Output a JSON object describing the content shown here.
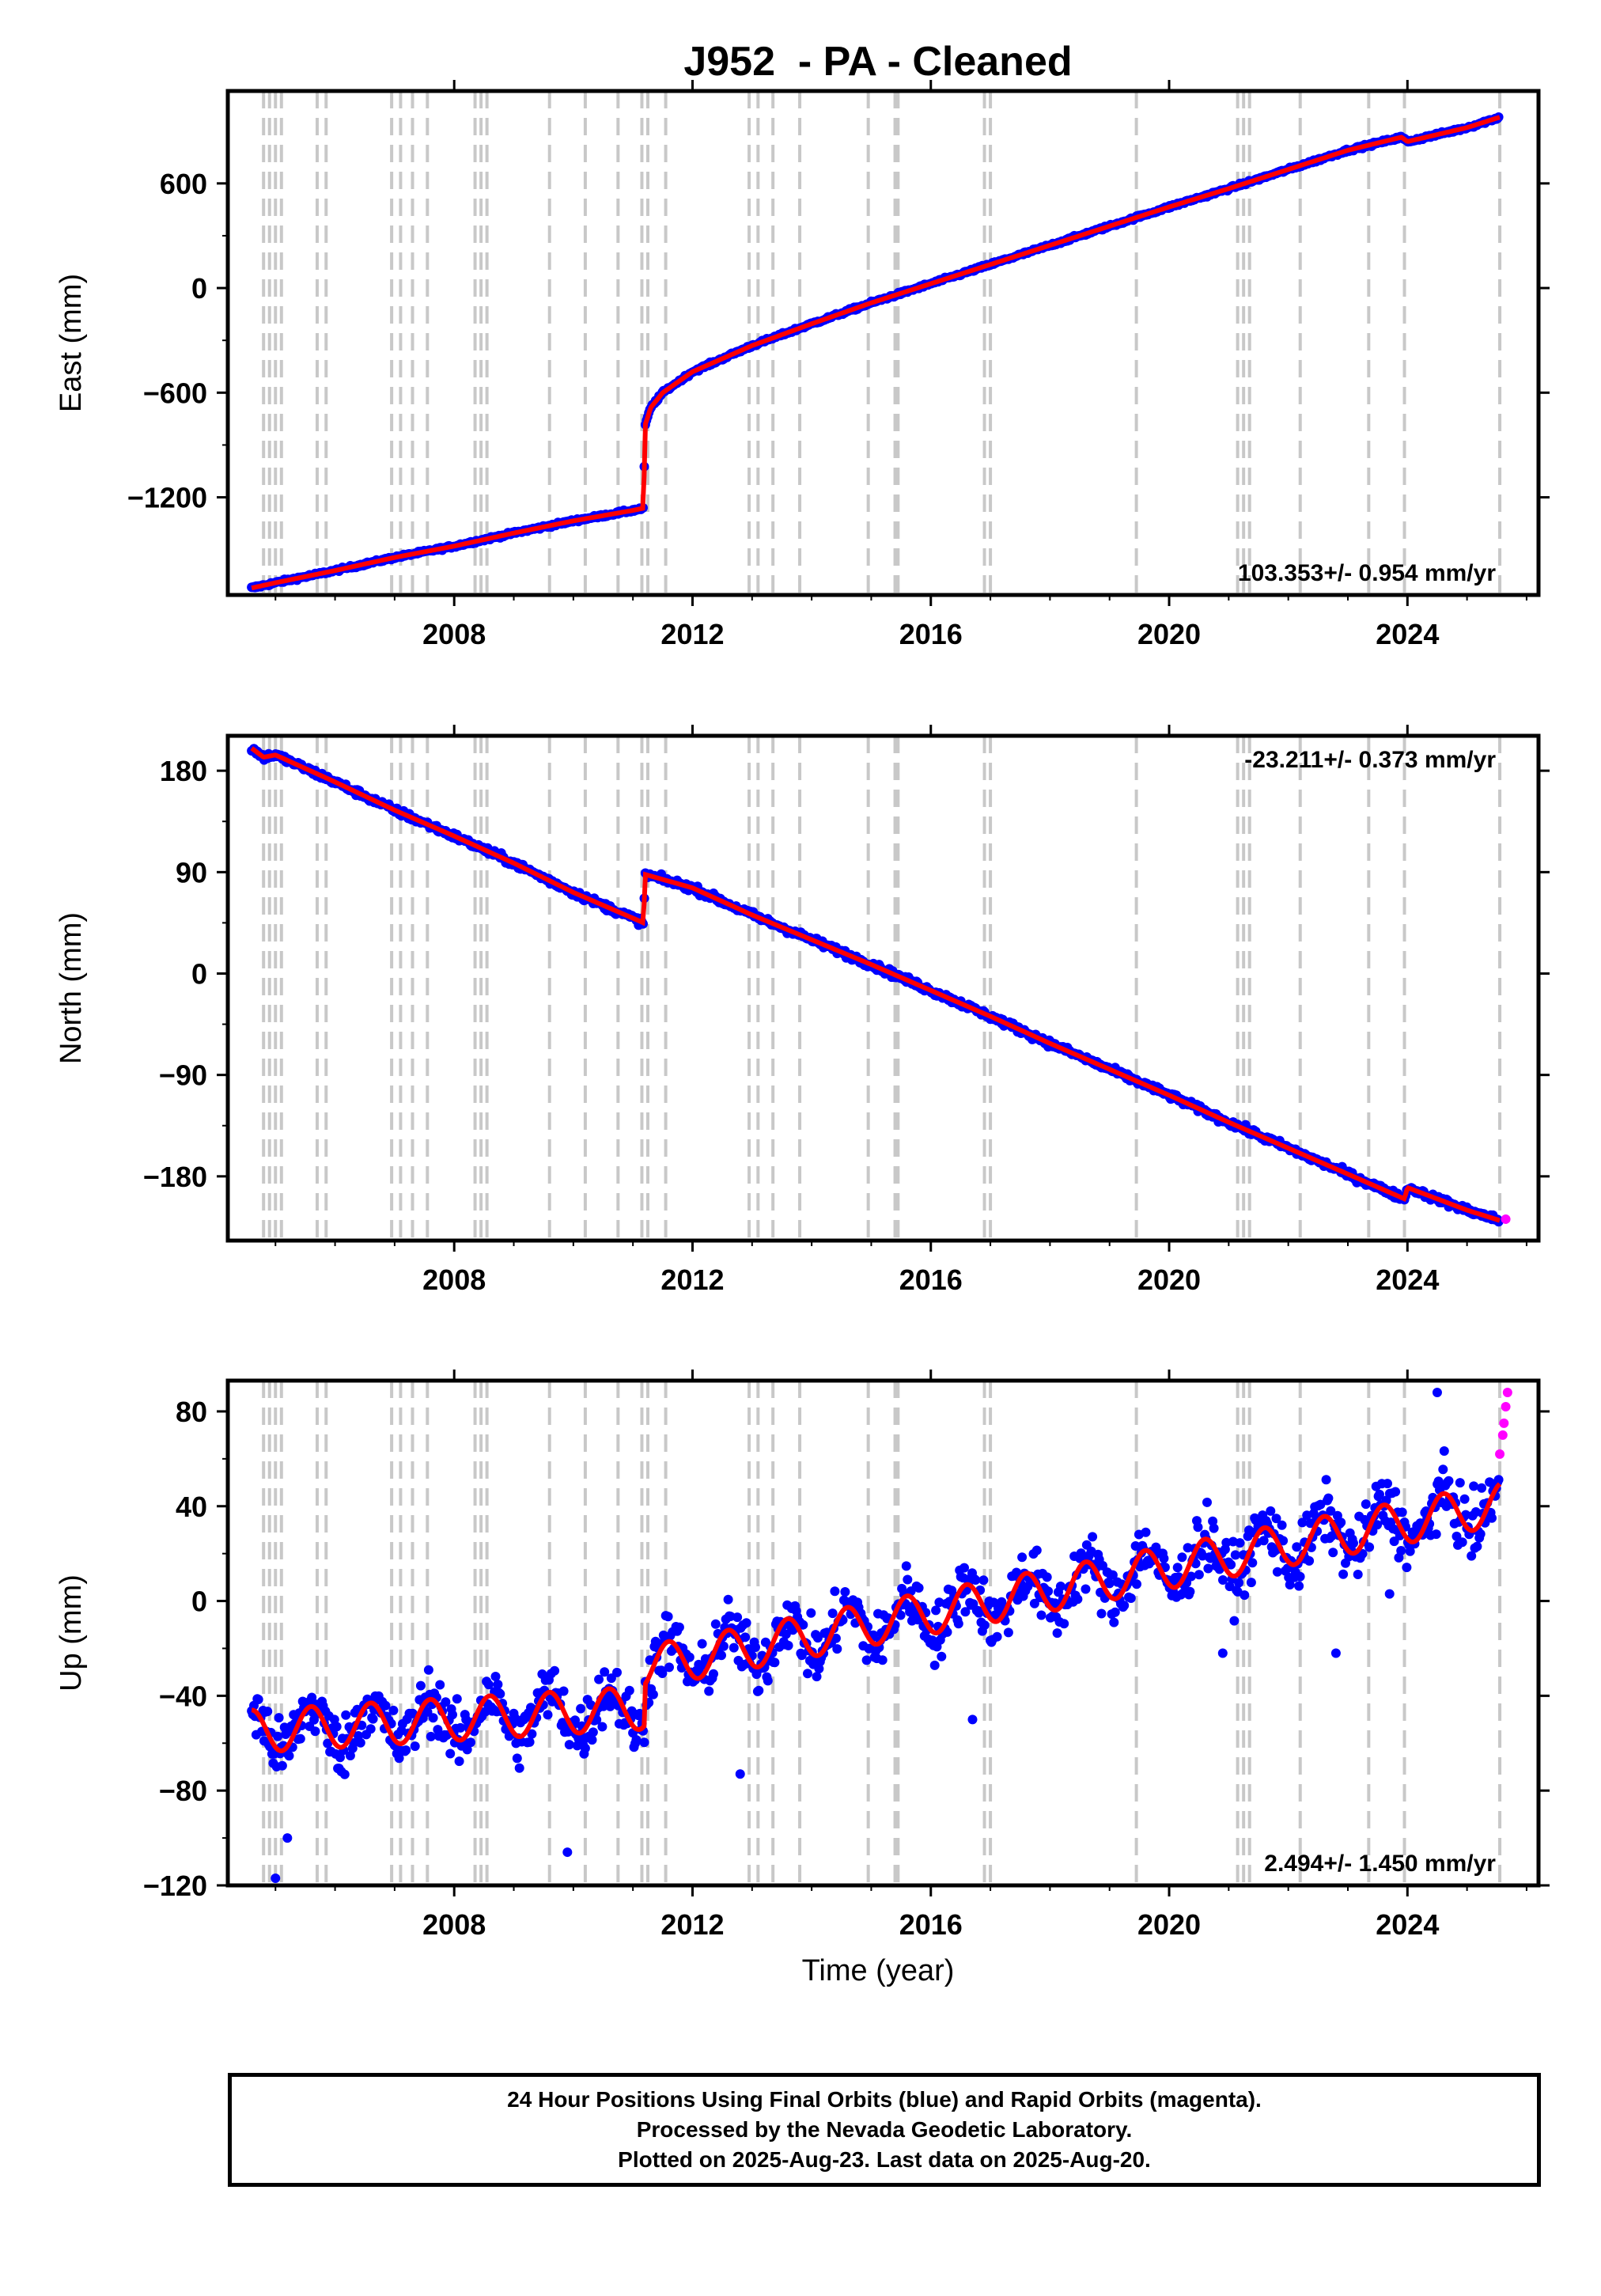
{
  "title": "J952  - PA - Cleaned",
  "colors": {
    "final": "#0000ff",
    "rapid": "#ff00ff",
    "model": "#ff0000",
    "steps": "#c8c8c8",
    "frame": "#000000"
  },
  "xlabel": "Time (year)",
  "x_ticks": [
    "2008",
    "2012",
    "2016",
    "2020",
    "2024"
  ],
  "footer": {
    "line1": "24 Hour Positions Using Final Orbits (blue) and Rapid Orbits (magenta).",
    "line2": "Processed by the Nevada Geodetic Laboratory.",
    "line3": "Plotted on 2025-Aug-23. Last data on 2025-Aug-20."
  },
  "chart_data": [
    {
      "type": "scatter",
      "name": "east",
      "ylabel": "East (mm)",
      "rate_label": "103.353+/- 0.954 mm/yr",
      "rate_position": "bottom-right",
      "xlim": [
        2004.2,
        2026.2
      ],
      "ylim": [
        -1760,
        1130
      ],
      "y_ticks": [
        600,
        0,
        -600,
        -1200
      ],
      "y_tick_labels": [
        "600",
        "0",
        "−600",
        "−1200"
      ],
      "grid": false,
      "x": [
        2004.6,
        2005.0,
        2006.0,
        2007.0,
        2008.0,
        2009.0,
        2010.0,
        2011.0,
        2011.18,
        2011.2,
        2011.3,
        2011.5,
        2012.0,
        2013.0,
        2014.0,
        2015.0,
        2016.0,
        2017.0,
        2018.0,
        2019.0,
        2020.0,
        2021.0,
        2022.0,
        2023.0,
        2023.9,
        2024.0,
        2025.0,
        2025.6
      ],
      "y": [
        -1720,
        -1690,
        -1620,
        -1545,
        -1480,
        -1405,
        -1335,
        -1275,
        -1262,
        -790,
        -685,
        -600,
        -480,
        -330,
        -205,
        -85,
        25,
        135,
        245,
        355,
        465,
        570,
        680,
        790,
        865,
        840,
        920,
        985
      ],
      "offset_epochs": [
        2004.8,
        2004.9,
        2005.0,
        2005.1,
        2005.7,
        2005.85,
        2006.95,
        2007.1,
        2007.3,
        2007.55,
        2008.35,
        2008.45,
        2008.55,
        2009.6,
        2010.2,
        2010.75,
        2011.15,
        2011.25,
        2011.55,
        2012.95,
        2013.1,
        2013.35,
        2013.8,
        2014.95,
        2015.4,
        2015.45,
        2016.9,
        2017.0,
        2019.45,
        2021.15,
        2021.25,
        2021.35,
        2022.2,
        2023.35,
        2023.95,
        2025.55
      ]
    },
    {
      "type": "scatter",
      "name": "north",
      "ylabel": "North (mm)",
      "rate_label": "-23.211+/- 0.373 mm/yr",
      "rate_position": "top-right",
      "xlim": [
        2004.2,
        2026.2
      ],
      "ylim": [
        -237,
        211
      ],
      "y_ticks": [
        180,
        90,
        0,
        -90,
        -180
      ],
      "y_tick_labels": [
        "180",
        "90",
        "0",
        "−90",
        "−180"
      ],
      "grid": false,
      "x": [
        2004.6,
        2004.8,
        2005.0,
        2006.0,
        2007.0,
        2008.0,
        2009.0,
        2010.0,
        2011.18,
        2011.2,
        2012.0,
        2013.0,
        2014.0,
        2015.0,
        2016.0,
        2017.0,
        2018.0,
        2019.0,
        2020.0,
        2021.0,
        2022.0,
        2023.0,
        2023.95,
        2024.0,
        2025.0,
        2025.6
      ],
      "y": [
        200,
        192,
        194,
        170,
        145,
        122,
        98,
        72,
        45,
        88,
        76,
        52,
        30,
        8,
        -15,
        -38,
        -62,
        -85,
        -108,
        -132,
        -155,
        -178,
        -200,
        -190,
        -210,
        -220
      ],
      "rapid_x": [
        2025.65
      ],
      "rapid_y": [
        -218
      ],
      "offset_epochs": [
        2004.8,
        2004.9,
        2005.0,
        2005.1,
        2005.7,
        2005.85,
        2006.95,
        2007.1,
        2007.3,
        2007.55,
        2008.35,
        2008.45,
        2008.55,
        2009.6,
        2010.2,
        2010.75,
        2011.15,
        2011.25,
        2011.55,
        2012.95,
        2013.1,
        2013.35,
        2013.8,
        2014.95,
        2015.4,
        2015.45,
        2016.9,
        2017.0,
        2019.45,
        2021.15,
        2021.25,
        2021.35,
        2022.2,
        2023.35,
        2023.95,
        2025.55
      ]
    },
    {
      "type": "scatter",
      "name": "up",
      "ylabel": "Up (mm)",
      "rate_label": "2.494+/- 1.450 mm/yr",
      "rate_position": "bottom-right",
      "xlim": [
        2004.2,
        2026.2
      ],
      "ylim": [
        -120,
        93
      ],
      "y_ticks": [
        80,
        40,
        0,
        -40,
        -80,
        -120
      ],
      "y_tick_labels": [
        "80",
        "40",
        "0",
        "−40",
        "−80",
        "−120"
      ],
      "grid": false,
      "model": {
        "start": 2004.6,
        "base": -62,
        "seasonal_amp": 9,
        "segments": [
          {
            "from": 2004.6,
            "to": 2011.2,
            "y0": -55,
            "rate": 1.5
          },
          {
            "from": 2011.2,
            "to": 2025.7,
            "y0": -28,
            "rate": 4.8
          }
        ]
      },
      "rapid_x": [
        2025.55,
        2025.6,
        2025.62,
        2025.65,
        2025.68
      ],
      "rapid_y": [
        62,
        70,
        75,
        82,
        88
      ],
      "outliers_x": [
        2005.0,
        2005.2,
        2009.9,
        2012.8,
        2016.7,
        2020.9,
        2022.8,
        2024.5,
        2023.7
      ],
      "outliers_y": [
        -117,
        -100,
        -106,
        -73,
        -50,
        -22,
        -22,
        88,
        3
      ],
      "offset_epochs": [
        2004.8,
        2004.9,
        2005.0,
        2005.1,
        2005.7,
        2005.85,
        2006.95,
        2007.1,
        2007.3,
        2007.55,
        2008.35,
        2008.45,
        2008.55,
        2009.6,
        2010.2,
        2010.75,
        2011.15,
        2011.25,
        2011.55,
        2012.95,
        2013.1,
        2013.35,
        2013.8,
        2014.95,
        2015.4,
        2015.45,
        2016.9,
        2017.0,
        2019.45,
        2021.15,
        2021.25,
        2021.35,
        2022.2,
        2023.35,
        2023.95,
        2025.55
      ]
    }
  ]
}
